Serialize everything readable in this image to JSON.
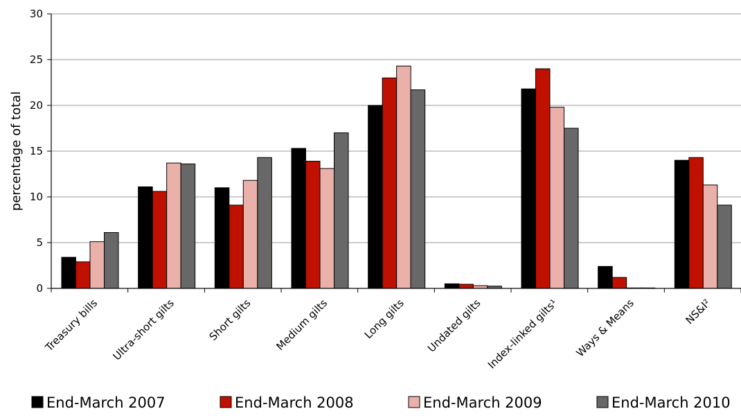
{
  "chart_data": {
    "type": "bar",
    "ylabel": "percentage of total",
    "ylim": [
      0,
      30
    ],
    "yticks": [
      0,
      5,
      10,
      15,
      20,
      25,
      30
    ],
    "grid": true,
    "legend_position": "bottom",
    "categories": [
      "Treasury bills",
      "Ultra-short gilts",
      "Short gilts",
      "Medium gilts",
      "Long gilts",
      "Undated gilts",
      "Index-linked gilts¹",
      "Ways & Means",
      "NS&I²"
    ],
    "series": [
      {
        "name": "End-March 2007",
        "color": "#000000",
        "values": [
          3.4,
          11.1,
          11.0,
          15.3,
          20.0,
          0.5,
          21.8,
          2.4,
          14.0
        ]
      },
      {
        "name": "End-March 2008",
        "color": "#c01000",
        "values": [
          2.9,
          10.6,
          9.1,
          13.9,
          23.0,
          0.45,
          24.0,
          1.2,
          14.3
        ]
      },
      {
        "name": "End-March 2009",
        "color": "#eab0aa",
        "values": [
          5.1,
          13.7,
          11.8,
          13.1,
          24.3,
          0.3,
          19.8,
          0.05,
          11.3
        ]
      },
      {
        "name": "End-March 2010",
        "color": "#686868",
        "values": [
          6.1,
          13.6,
          14.3,
          17.0,
          21.7,
          0.25,
          17.5,
          0.05,
          9.1
        ]
      }
    ]
  }
}
